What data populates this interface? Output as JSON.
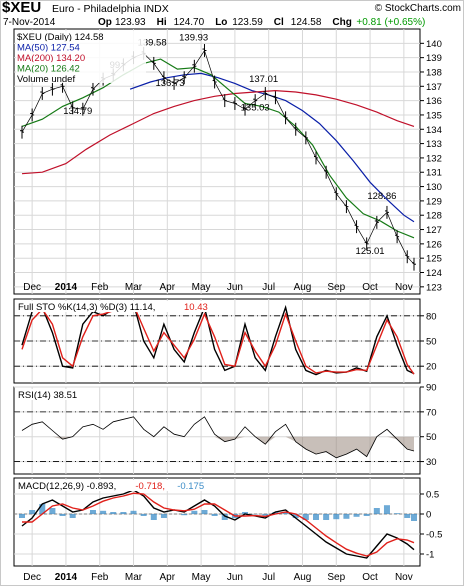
{
  "header": {
    "symbol": "$XEU",
    "name": "Euro - Philadelphia INDX",
    "watermark": "© StockCharts.com",
    "date": "7-Nov-2014",
    "stats": [
      {
        "key": "Op",
        "value": "123.93"
      },
      {
        "key": "Hi",
        "value": "124.70"
      },
      {
        "key": "Lo",
        "value": "123.59"
      },
      {
        "key": "Cl",
        "value": "124.58"
      },
      {
        "key": "Chg",
        "value": "+0.81 (+0.65%)",
        "color": "#009900"
      }
    ]
  },
  "colors": {
    "price": "#000000",
    "ma50": "#0a1fa8",
    "ma200": "#c0102a",
    "ma20": "#167a16",
    "k": "#000000",
    "d": "#e0201a",
    "rsi": "#000000",
    "macd": "#000000",
    "signal": "#e0201a",
    "hist": "#3c8dc8",
    "grid": "#d8d8d8",
    "fill": "#9a8a80"
  },
  "chart_data": [
    {
      "type": "line",
      "panel": "price",
      "legend": [
        {
          "label": "$XEU (Daily) 124.58",
          "color": "#000000"
        },
        {
          "label": "MA(50) 127.54",
          "color": "#0a1fa8"
        },
        {
          "label": "MA(200) 134.20",
          "color": "#c0102a"
        },
        {
          "label": "MA(20) 126.42",
          "color": "#167a16"
        },
        {
          "label": "Volume undef",
          "color": "#000000"
        }
      ],
      "ylim": [
        122.5,
        141
      ],
      "yticks": [
        123,
        124,
        125,
        126,
        127,
        128,
        129,
        130,
        131,
        132,
        133,
        134,
        135,
        136,
        137,
        138,
        139,
        140
      ],
      "x_months": [
        "Dec",
        "2014",
        "Feb",
        "Mar",
        "Apr",
        "May",
        "Jun",
        "Jul",
        "Aug",
        "Sep",
        "Oct",
        "Nov"
      ],
      "annotations": [
        {
          "label": "139.58",
          "x": 3.55,
          "y": 139.58
        },
        {
          "label": "139.93",
          "x": 4.78,
          "y": 139.93
        },
        {
          "label": "137.01",
          "x": 6.85,
          "y": 137.01
        },
        {
          "label": "136.73",
          "x": 4.08,
          "y": 136.73
        },
        {
          "label": "135.03",
          "x": 6.6,
          "y": 135.03
        },
        {
          "label": "134.79",
          "x": 1.35,
          "y": 134.79
        },
        {
          "label": "128.86",
          "x": 10.35,
          "y": 128.86
        },
        {
          "label": "125.01",
          "x": 10.0,
          "y": 125.01
        },
        {
          "label": "99",
          "x": 2.45,
          "y": 137.99
        }
      ],
      "series": [
        {
          "name": "$XEU (Daily)",
          "x": [
            -0.3,
            0.0,
            0.3,
            0.6,
            0.9,
            1.2,
            1.5,
            1.8,
            2.1,
            2.4,
            2.7,
            3.0,
            3.3,
            3.6,
            3.9,
            4.2,
            4.5,
            4.8,
            5.1,
            5.4,
            5.7,
            6.0,
            6.3,
            6.6,
            6.9,
            7.2,
            7.5,
            7.8,
            8.1,
            8.4,
            8.7,
            9.0,
            9.3,
            9.6,
            9.9,
            10.2,
            10.5,
            10.8,
            11.1,
            11.3
          ],
          "values": [
            133.8,
            135.0,
            136.5,
            136.8,
            137.0,
            135.5,
            135.4,
            136.8,
            137.5,
            137.8,
            138.5,
            139.0,
            139.3,
            138.6,
            137.6,
            137.2,
            137.6,
            138.4,
            139.5,
            137.3,
            136.0,
            135.8,
            135.4,
            136.0,
            136.5,
            136.2,
            134.8,
            134.0,
            133.4,
            132.0,
            131.0,
            129.5,
            128.6,
            127.2,
            126.0,
            127.5,
            128.2,
            126.5,
            125.1,
            124.58
          ]
        },
        {
          "name": "MA(50)",
          "x": [
            2.9,
            3.5,
            4.0,
            4.5,
            5.0,
            5.5,
            6.0,
            6.5,
            7.0,
            7.5,
            8.0,
            8.5,
            9.0,
            9.5,
            10.0,
            10.5,
            11.0,
            11.3
          ],
          "values": [
            136.8,
            137.3,
            137.6,
            137.8,
            137.9,
            137.6,
            137.2,
            136.7,
            136.4,
            136.0,
            135.3,
            134.4,
            133.2,
            131.8,
            130.3,
            129.1,
            128.0,
            127.54
          ]
        },
        {
          "name": "MA(200)",
          "x": [
            -0.3,
            0.3,
            1.0,
            1.6,
            2.3,
            3.0,
            3.6,
            4.2,
            4.8,
            5.4,
            6.0,
            6.6,
            7.2,
            7.8,
            8.4,
            9.0,
            9.6,
            10.2,
            10.8,
            11.3
          ],
          "values": [
            130.9,
            131.0,
            131.6,
            132.6,
            133.6,
            134.4,
            135.1,
            135.6,
            136.0,
            136.3,
            136.5,
            136.6,
            136.7,
            136.6,
            136.4,
            136.1,
            135.7,
            135.2,
            134.6,
            134.2
          ]
        },
        {
          "name": "MA(20)",
          "x": [
            -0.3,
            0.3,
            0.9,
            1.5,
            2.1,
            2.7,
            3.3,
            3.8,
            4.3,
            4.8,
            5.3,
            5.8,
            6.3,
            6.8,
            7.3,
            7.8,
            8.3,
            8.8,
            9.3,
            9.8,
            10.3,
            10.8,
            11.3
          ],
          "values": [
            134.2,
            134.7,
            135.6,
            136.2,
            136.9,
            137.8,
            138.6,
            138.9,
            138.2,
            138.3,
            137.8,
            136.8,
            135.8,
            135.6,
            135.2,
            134.2,
            132.9,
            130.8,
            129.2,
            128.1,
            127.6,
            126.9,
            126.42
          ]
        }
      ]
    },
    {
      "type": "line",
      "panel": "stochastic",
      "title": "Full STO %K(14,3) %D(3)",
      "legend": [
        {
          "label": "Full STO %K(14,3) %D(3) 11.14,",
          "color": "#000000"
        },
        {
          "label": "10.43",
          "color": "#e0201a"
        }
      ],
      "ylim": [
        0,
        100
      ],
      "yticks": [
        20,
        50,
        80
      ],
      "x": [
        -0.3,
        0.0,
        0.3,
        0.6,
        0.9,
        1.2,
        1.5,
        1.8,
        2.1,
        2.4,
        2.7,
        3.0,
        3.3,
        3.6,
        3.9,
        4.2,
        4.5,
        4.8,
        5.1,
        5.4,
        5.7,
        6.0,
        6.3,
        6.6,
        6.9,
        7.2,
        7.5,
        7.8,
        8.1,
        8.4,
        8.7,
        9.0,
        9.3,
        9.6,
        9.9,
        10.2,
        10.5,
        10.8,
        11.1,
        11.3
      ],
      "series": [
        {
          "name": "%K",
          "values": [
            45,
            85,
            90,
            60,
            20,
            18,
            70,
            85,
            80,
            88,
            92,
            95,
            50,
            30,
            70,
            40,
            25,
            60,
            90,
            40,
            15,
            20,
            70,
            30,
            15,
            55,
            90,
            40,
            15,
            10,
            15,
            12,
            13,
            18,
            14,
            55,
            80,
            45,
            15,
            11.14
          ]
        },
        {
          "name": "%D",
          "values": [
            40,
            75,
            88,
            70,
            30,
            20,
            55,
            80,
            82,
            86,
            90,
            93,
            65,
            38,
            60,
            45,
            30,
            52,
            82,
            55,
            22,
            20,
            60,
            38,
            20,
            45,
            82,
            50,
            20,
            12,
            14,
            13,
            13,
            16,
            15,
            45,
            75,
            55,
            22,
            10.43
          ]
        }
      ]
    },
    {
      "type": "line",
      "panel": "rsi",
      "title": "RSI(14)",
      "legend": [
        {
          "label": "RSI(14) 38.51",
          "color": "#000000"
        }
      ],
      "ylim": [
        20,
        90
      ],
      "yticks": [
        30,
        50,
        70,
        90
      ],
      "x": [
        -0.3,
        0.0,
        0.3,
        0.6,
        0.9,
        1.2,
        1.5,
        1.8,
        2.1,
        2.4,
        2.7,
        3.0,
        3.3,
        3.6,
        3.9,
        4.2,
        4.5,
        4.8,
        5.1,
        5.4,
        5.7,
        6.0,
        6.3,
        6.6,
        6.9,
        7.2,
        7.5,
        7.8,
        8.1,
        8.4,
        8.7,
        9.0,
        9.3,
        9.6,
        9.9,
        10.2,
        10.5,
        10.8,
        11.1,
        11.3
      ],
      "series": [
        {
          "name": "RSI(14)",
          "values": [
            55,
            60,
            62,
            55,
            48,
            50,
            58,
            60,
            56,
            62,
            64,
            66,
            56,
            50,
            58,
            52,
            50,
            60,
            66,
            52,
            46,
            48,
            58,
            50,
            44,
            54,
            60,
            46,
            40,
            36,
            38,
            33,
            36,
            40,
            34,
            50,
            56,
            48,
            40,
            38.51
          ]
        }
      ]
    },
    {
      "type": "line",
      "panel": "macd",
      "title": "MACD(12,26,9)",
      "legend": [
        {
          "label": "MACD(12,26,9) -0.893,",
          "color": "#000000"
        },
        {
          "label": "-0.718,",
          "color": "#e0201a"
        },
        {
          "label": "-0.175",
          "color": "#3c8dc8"
        }
      ],
      "ylim": [
        -1.3,
        0.9
      ],
      "yticks": [
        -1.0,
        -0.5,
        0.0,
        0.5
      ],
      "x": [
        -0.3,
        0.0,
        0.3,
        0.6,
        0.9,
        1.2,
        1.5,
        1.8,
        2.1,
        2.4,
        2.7,
        3.0,
        3.3,
        3.6,
        3.9,
        4.2,
        4.5,
        4.8,
        5.1,
        5.4,
        5.7,
        6.0,
        6.3,
        6.6,
        6.9,
        7.2,
        7.5,
        7.8,
        8.1,
        8.4,
        8.7,
        9.0,
        9.3,
        9.6,
        9.9,
        10.2,
        10.5,
        10.8,
        11.1,
        11.3
      ],
      "series": [
        {
          "name": "MACD",
          "values": [
            -0.3,
            -0.1,
            0.25,
            0.35,
            0.2,
            0.05,
            0.1,
            0.3,
            0.4,
            0.45,
            0.5,
            0.6,
            0.45,
            0.15,
            0.05,
            0.1,
            0.05,
            0.2,
            0.35,
            0.2,
            -0.05,
            -0.15,
            0.0,
            -0.05,
            -0.1,
            0.05,
            0.1,
            -0.1,
            -0.3,
            -0.5,
            -0.7,
            -0.85,
            -1.0,
            -1.05,
            -1.1,
            -0.8,
            -0.5,
            -0.6,
            -0.75,
            -0.893
          ]
        },
        {
          "name": "Signal",
          "values": [
            -0.2,
            -0.2,
            0.0,
            0.2,
            0.25,
            0.15,
            0.1,
            0.2,
            0.32,
            0.4,
            0.45,
            0.52,
            0.5,
            0.3,
            0.15,
            0.1,
            0.08,
            0.12,
            0.25,
            0.25,
            0.1,
            -0.05,
            -0.05,
            -0.04,
            -0.06,
            0.0,
            0.05,
            0.0,
            -0.15,
            -0.35,
            -0.55,
            -0.72,
            -0.88,
            -0.98,
            -1.05,
            -0.95,
            -0.72,
            -0.62,
            -0.65,
            -0.718
          ]
        },
        {
          "name": "Histogram",
          "values": [
            -0.1,
            0.1,
            0.25,
            0.15,
            -0.05,
            -0.1,
            0.0,
            0.1,
            0.08,
            0.05,
            0.05,
            0.08,
            -0.05,
            -0.15,
            -0.1,
            0.0,
            -0.03,
            0.08,
            0.1,
            -0.05,
            -0.15,
            -0.1,
            0.05,
            -0.01,
            -0.04,
            0.05,
            0.05,
            -0.1,
            -0.15,
            -0.15,
            -0.15,
            -0.13,
            -0.12,
            -0.07,
            -0.05,
            0.15,
            0.22,
            0.02,
            -0.1,
            -0.175
          ]
        }
      ]
    }
  ]
}
